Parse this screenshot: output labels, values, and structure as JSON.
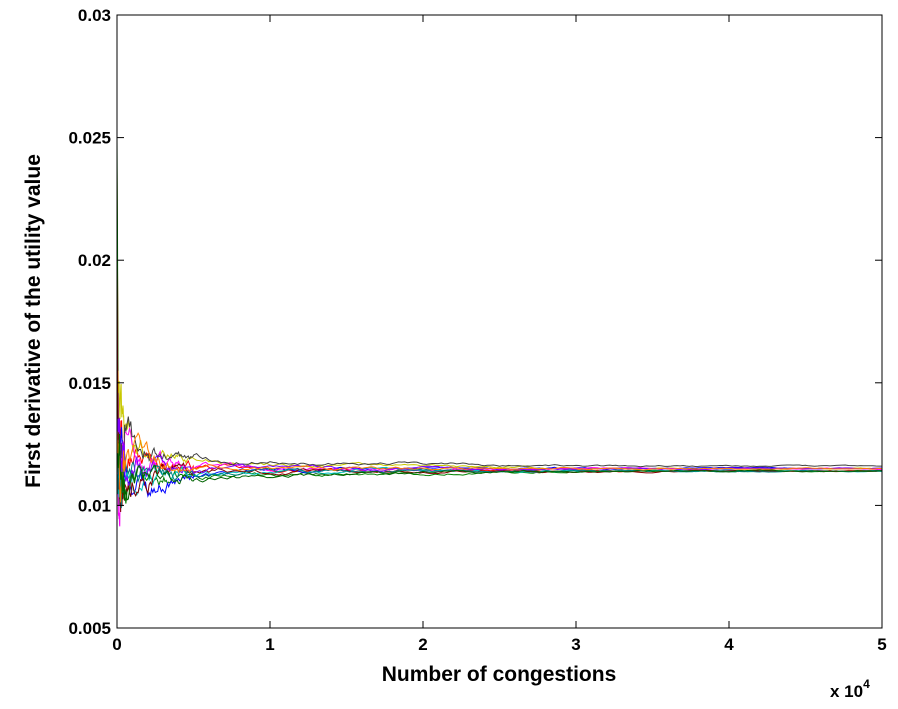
{
  "chart_data": {
    "type": "line",
    "title": "",
    "xlabel": "Number of congestions",
    "ylabel": "First derivative of the utility value",
    "x_multiplier_label": "x 10",
    "x_multiplier_exponent": "4",
    "x_multiplier": 10000,
    "xlim": [
      0,
      5
    ],
    "ylim": [
      0.005,
      0.03
    ],
    "x_ticks": [
      0,
      1,
      2,
      3,
      4,
      5
    ],
    "x_tick_labels": [
      "0",
      "1",
      "2",
      "3",
      "4",
      "5"
    ],
    "y_ticks": [
      0.005,
      0.01,
      0.015,
      0.02,
      0.025,
      0.03
    ],
    "y_tick_labels": [
      "0.005",
      "0.01",
      "0.015",
      "0.02",
      "0.025",
      "0.03"
    ],
    "grid": false,
    "legend": false,
    "converged_value": 0.0114,
    "series": [
      {
        "color": "#ff0000",
        "values": [
          [
            0,
            0.0238
          ],
          [
            0.01,
            0.0145
          ],
          [
            0.05,
            0.0126
          ],
          [
            0.2,
            0.0118
          ],
          [
            0.5,
            0.0116
          ],
          [
            1,
            0.0114
          ],
          [
            2,
            0.0114
          ],
          [
            3,
            0.0114
          ],
          [
            4,
            0.0114
          ],
          [
            5,
            0.0114
          ]
        ]
      },
      {
        "color": "#008000",
        "values": [
          [
            0,
            0.025
          ],
          [
            0.01,
            0.0102
          ],
          [
            0.05,
            0.0106
          ],
          [
            0.2,
            0.0109
          ],
          [
            0.5,
            0.0112
          ],
          [
            1,
            0.0113
          ],
          [
            2,
            0.0113
          ],
          [
            3,
            0.0114
          ],
          [
            4,
            0.0114
          ],
          [
            5,
            0.0114
          ]
        ]
      },
      {
        "color": "#0000ff",
        "values": [
          [
            0,
            0.0152
          ],
          [
            0.01,
            0.0121
          ],
          [
            0.05,
            0.0114
          ],
          [
            0.2,
            0.0107
          ],
          [
            0.5,
            0.0112
          ],
          [
            1,
            0.0114
          ],
          [
            2,
            0.0115
          ],
          [
            3,
            0.0115
          ],
          [
            4,
            0.0115
          ],
          [
            5,
            0.0115
          ]
        ]
      },
      {
        "color": "#c8c800",
        "values": [
          [
            0,
            0.0148
          ],
          [
            0.01,
            0.0144
          ],
          [
            0.05,
            0.0133
          ],
          [
            0.2,
            0.0122
          ],
          [
            0.5,
            0.0119
          ],
          [
            1,
            0.0117
          ],
          [
            2,
            0.0116
          ],
          [
            3,
            0.0115
          ],
          [
            4,
            0.0115
          ],
          [
            5,
            0.0115
          ]
        ]
      },
      {
        "color": "#ff00ff",
        "values": [
          [
            0,
            0.0126
          ],
          [
            0.01,
            0.0099
          ],
          [
            0.05,
            0.0122
          ],
          [
            0.2,
            0.0118
          ],
          [
            0.5,
            0.0117
          ],
          [
            1,
            0.0115
          ],
          [
            2,
            0.0115
          ],
          [
            3,
            0.0115
          ],
          [
            4,
            0.0115
          ],
          [
            5,
            0.0115
          ]
        ]
      },
      {
        "color": "#00c0c0",
        "values": [
          [
            0,
            0.0121
          ],
          [
            0.01,
            0.0103
          ],
          [
            0.05,
            0.0108
          ],
          [
            0.2,
            0.0111
          ],
          [
            0.5,
            0.0113
          ],
          [
            1,
            0.0114
          ],
          [
            2,
            0.0114
          ],
          [
            3,
            0.0114
          ],
          [
            4,
            0.0114
          ],
          [
            5,
            0.0114
          ]
        ]
      },
      {
        "color": "#404040",
        "values": [
          [
            0,
            0.0118
          ],
          [
            0.01,
            0.0123
          ],
          [
            0.05,
            0.0121
          ],
          [
            0.2,
            0.012
          ],
          [
            0.5,
            0.0119
          ],
          [
            1,
            0.0118
          ],
          [
            2,
            0.0117
          ],
          [
            3,
            0.0116
          ],
          [
            4,
            0.0116
          ],
          [
            5,
            0.0116
          ]
        ]
      },
      {
        "color": "#800000",
        "values": [
          [
            0,
            0.0201
          ],
          [
            0.01,
            0.0112
          ],
          [
            0.05,
            0.0116
          ],
          [
            0.2,
            0.0115
          ],
          [
            0.5,
            0.0114
          ],
          [
            1,
            0.0114
          ],
          [
            2,
            0.0114
          ],
          [
            3,
            0.0114
          ],
          [
            4,
            0.0114
          ],
          [
            5,
            0.0114
          ]
        ]
      },
      {
        "color": "#008080",
        "values": [
          [
            0,
            0.0113
          ],
          [
            0.01,
            0.0106
          ],
          [
            0.05,
            0.0113
          ],
          [
            0.2,
            0.0112
          ],
          [
            0.5,
            0.0113
          ],
          [
            1,
            0.0114
          ],
          [
            2,
            0.0114
          ],
          [
            3,
            0.0114
          ],
          [
            4,
            0.0114
          ],
          [
            5,
            0.0114
          ]
        ]
      },
      {
        "color": "#8000ff",
        "values": [
          [
            0,
            0.0136
          ],
          [
            0.01,
            0.0124
          ],
          [
            0.05,
            0.0118
          ],
          [
            0.2,
            0.0116
          ],
          [
            0.5,
            0.0115
          ],
          [
            1,
            0.0115
          ],
          [
            2,
            0.0115
          ],
          [
            3,
            0.0115
          ],
          [
            4,
            0.0115
          ],
          [
            5,
            0.0115
          ]
        ]
      },
      {
        "color": "#ff8000",
        "values": [
          [
            0,
            0.0122
          ],
          [
            0.01,
            0.0118
          ],
          [
            0.05,
            0.0117
          ],
          [
            0.2,
            0.0116
          ],
          [
            0.5,
            0.0115
          ],
          [
            1,
            0.0115
          ],
          [
            2,
            0.0115
          ],
          [
            3,
            0.0115
          ],
          [
            4,
            0.0115
          ],
          [
            5,
            0.0115
          ]
        ]
      },
      {
        "color": "#006400",
        "values": [
          [
            0,
            0.0108
          ],
          [
            0.01,
            0.0111
          ],
          [
            0.05,
            0.011
          ],
          [
            0.2,
            0.011
          ],
          [
            0.5,
            0.011
          ],
          [
            1,
            0.0112
          ],
          [
            2,
            0.0113
          ],
          [
            3,
            0.0114
          ],
          [
            4,
            0.0114
          ],
          [
            5,
            0.0114
          ]
        ]
      }
    ]
  }
}
